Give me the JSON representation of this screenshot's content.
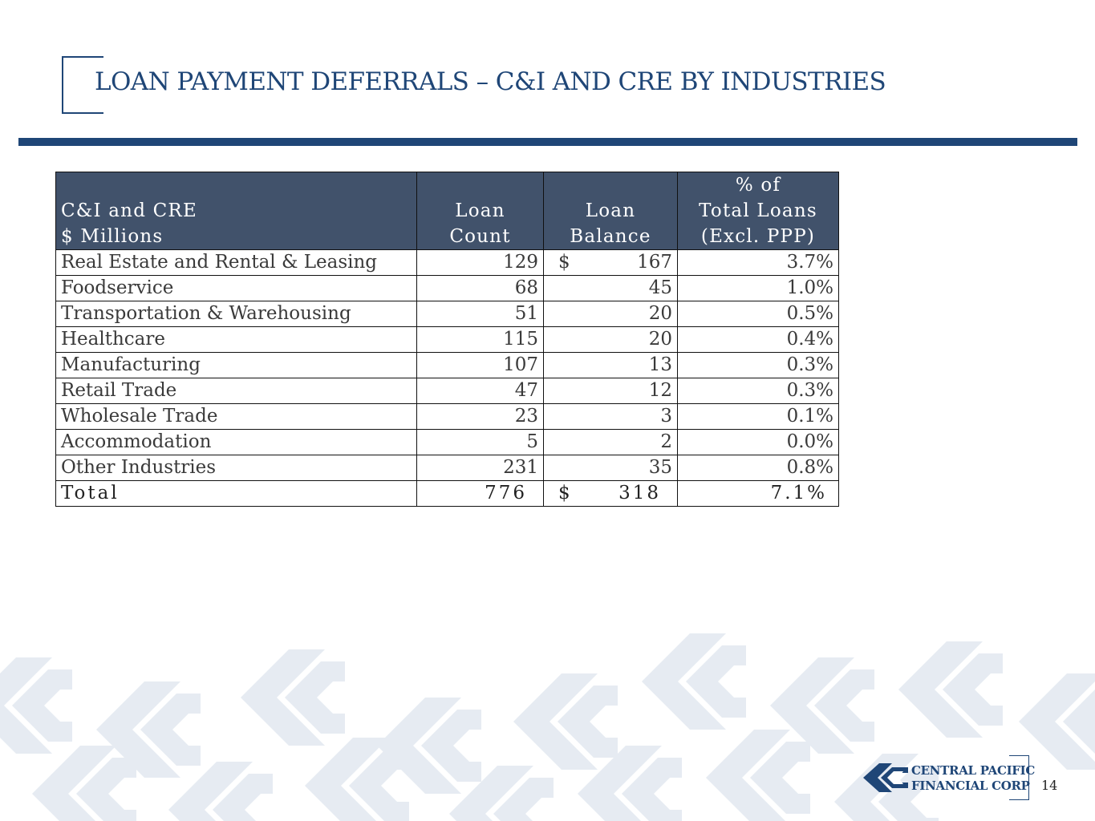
{
  "header": {
    "title": "LOAN PAYMENT DEFERRALS –  C&I AND CRE BY INDUSTRIES"
  },
  "table": {
    "headers": {
      "name": [
        "",
        "C&I and CRE",
        "$ Millions"
      ],
      "count": [
        "",
        "Loan",
        "Count"
      ],
      "balance": [
        "",
        "Loan",
        "Balance"
      ],
      "pct": [
        "% of",
        "Total Loans",
        "(Excl. PPP)"
      ]
    },
    "currency_symbol": "$",
    "rows": [
      {
        "industry": "Real Estate and Rental & Leasing",
        "count": "129",
        "balance": "167",
        "pct": "3.7%"
      },
      {
        "industry": "Foodservice",
        "count": "68",
        "balance": "45",
        "pct": "1.0%"
      },
      {
        "industry": "Transportation & Warehousing",
        "count": "51",
        "balance": "20",
        "pct": "0.5%"
      },
      {
        "industry": "Healthcare",
        "count": "115",
        "balance": "20",
        "pct": "0.4%"
      },
      {
        "industry": "Manufacturing",
        "count": "107",
        "balance": "13",
        "pct": "0.3%"
      },
      {
        "industry": "Retail Trade",
        "count": "47",
        "balance": "12",
        "pct": "0.3%"
      },
      {
        "industry": "Wholesale Trade",
        "count": "23",
        "balance": "3",
        "pct": "0.1%"
      },
      {
        "industry": "Accommodation",
        "count": "5",
        "balance": "2",
        "pct": "0.0%"
      },
      {
        "industry": "Other Industries",
        "count": "231",
        "balance": "35",
        "pct": "0.8%"
      }
    ],
    "total": {
      "label": "Total",
      "count": "776",
      "balance": "318",
      "pct": "7.1%"
    }
  },
  "footer": {
    "logo_line1": "CENTRAL PACIFIC",
    "logo_line2": "FINANCIAL CORP",
    "page_number": "14"
  },
  "colors": {
    "brand_navy": "#1f4677",
    "header_fill": "#41526b",
    "pattern": "#e6ebf2"
  }
}
